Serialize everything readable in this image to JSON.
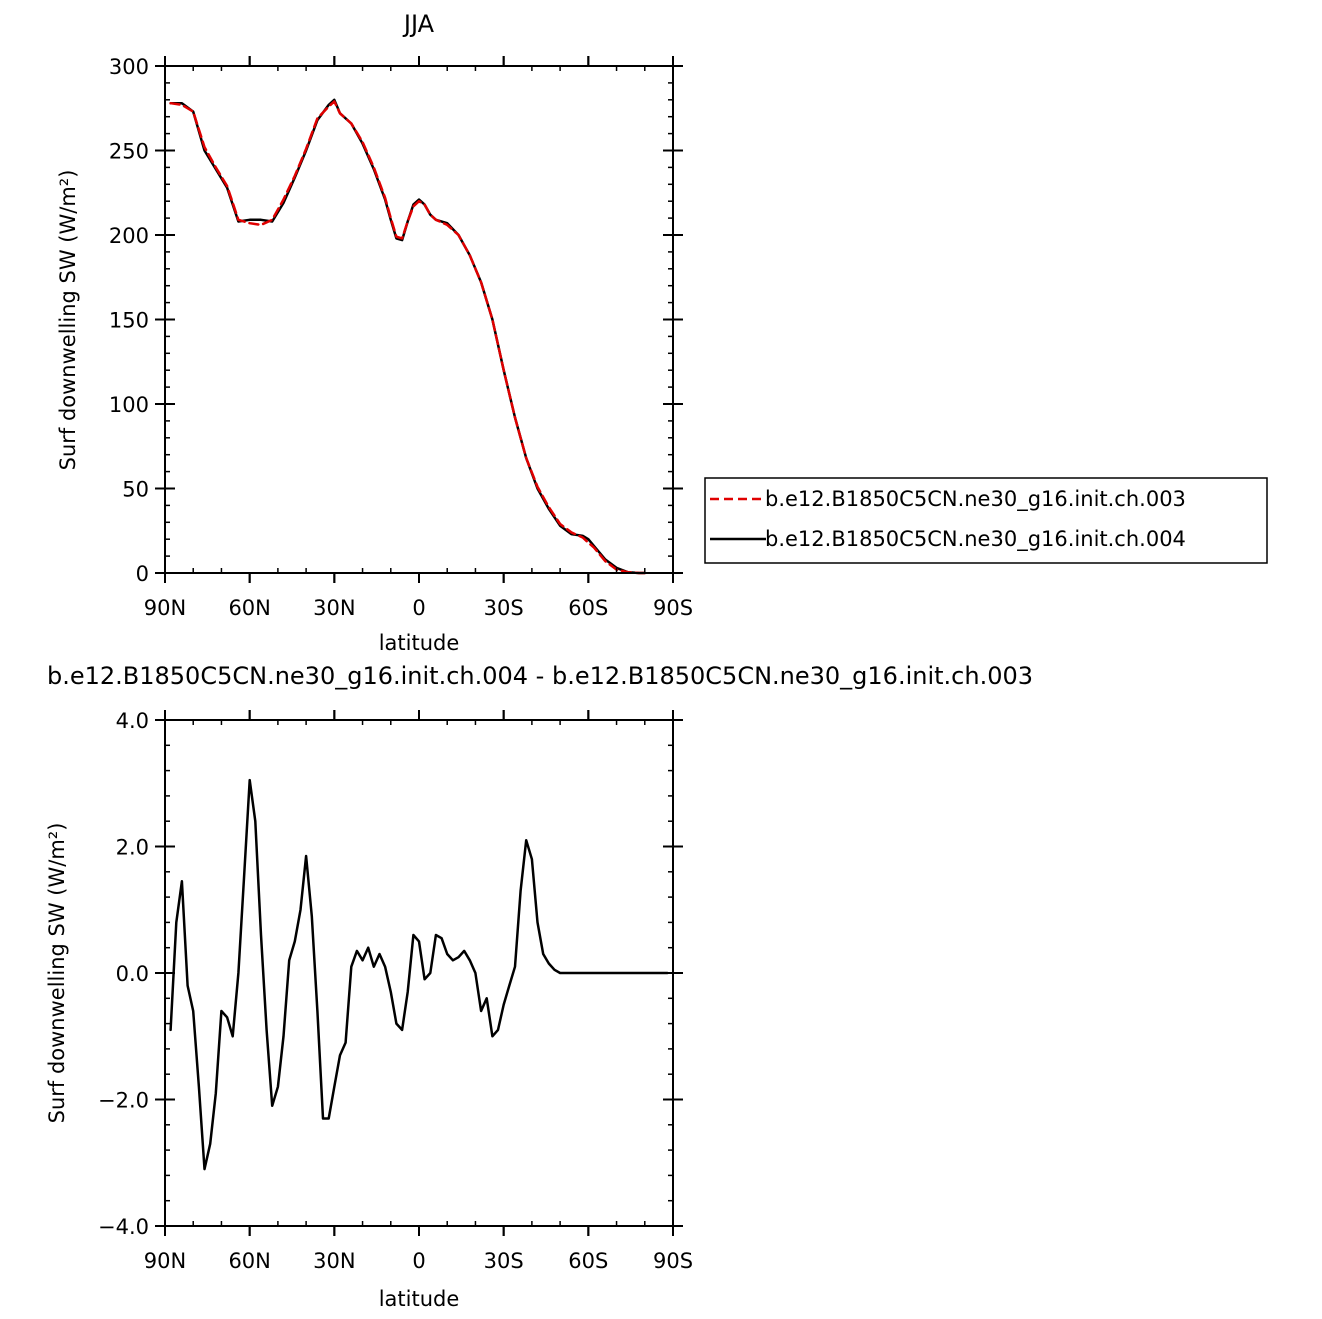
{
  "chart_data": [
    {
      "type": "line",
      "title": "JJA",
      "xlabel": "latitude",
      "ylabel": "Surf downwelling SW (W/m²)",
      "xlim": [
        90,
        -90
      ],
      "ylim": [
        0,
        300
      ],
      "xticks": [
        {
          "value": 90,
          "label": "90N"
        },
        {
          "value": 60,
          "label": "60N"
        },
        {
          "value": 30,
          "label": "30N"
        },
        {
          "value": 0,
          "label": "0"
        },
        {
          "value": -30,
          "label": "30S"
        },
        {
          "value": -60,
          "label": "60S"
        },
        {
          "value": -90,
          "label": "90S"
        }
      ],
      "yticks": [
        {
          "value": 0,
          "label": "0"
        },
        {
          "value": 50,
          "label": "50"
        },
        {
          "value": 100,
          "label": "100"
        },
        {
          "value": 150,
          "label": "150"
        },
        {
          "value": 200,
          "label": "200"
        },
        {
          "value": 250,
          "label": "250"
        },
        {
          "value": 300,
          "label": "300"
        }
      ],
      "x": [
        88,
        84,
        80,
        76,
        72,
        68,
        64,
        60,
        56,
        52,
        48,
        44,
        40,
        36,
        32,
        30,
        28,
        24,
        20,
        16,
        12,
        10,
        8,
        6,
        4,
        2,
        0,
        -2,
        -4,
        -6,
        -10,
        -14,
        -18,
        -22,
        -26,
        -30,
        -34,
        -38,
        -42,
        -46,
        -50,
        -54,
        -58,
        -60,
        -62,
        -66,
        -70,
        -74,
        -78,
        -80
      ],
      "series": [
        {
          "name": "b.e12.B1850C5CN.ne30_g16.init.ch.003",
          "color": "#e00000",
          "dash": true,
          "values": [
            278,
            277,
            273,
            252,
            240,
            229,
            209,
            207,
            206,
            209,
            221,
            235,
            251,
            269,
            276,
            279,
            272,
            266,
            255,
            240,
            222,
            210,
            199,
            198,
            208,
            217,
            220,
            218,
            212,
            209,
            206,
            200,
            188,
            172,
            150,
            120,
            92,
            68,
            51,
            39,
            29,
            24,
            21,
            18,
            15,
            7,
            2,
            0.5,
            0,
            0
          ]
        },
        {
          "name": "b.e12.B1850C5CN.ne30_g16.init.ch.004",
          "color": "#000000",
          "dash": false,
          "values": [
            278,
            278,
            273,
            250,
            239,
            228,
            208,
            209,
            209,
            208,
            219,
            234,
            250,
            268,
            277,
            280,
            272,
            266,
            254,
            239,
            221,
            209,
            198,
            197,
            208,
            218,
            221,
            218,
            212,
            209,
            207,
            200,
            188,
            172,
            150,
            120,
            92,
            68,
            50,
            38,
            28,
            23,
            22,
            20,
            16,
            8,
            3,
            0.5,
            0,
            0
          ]
        }
      ],
      "legend_position": "right"
    },
    {
      "type": "line",
      "title": "b.e12.B1850C5CN.ne30_g16.init.ch.004 - b.e12.B1850C5CN.ne30_g16.init.ch.003",
      "xlabel": "latitude",
      "ylabel": "Surf downwelling SW (W/m²)",
      "xlim": [
        90,
        -90
      ],
      "ylim": [
        -4,
        4
      ],
      "xticks": [
        {
          "value": 90,
          "label": "90N"
        },
        {
          "value": 60,
          "label": "60N"
        },
        {
          "value": 30,
          "label": "30N"
        },
        {
          "value": 0,
          "label": "0"
        },
        {
          "value": -30,
          "label": "30S"
        },
        {
          "value": -60,
          "label": "60S"
        },
        {
          "value": -90,
          "label": "90S"
        }
      ],
      "yticks": [
        {
          "value": -4,
          "label": "−4.0"
        },
        {
          "value": -2,
          "label": "−2.0"
        },
        {
          "value": 0,
          "label": "0.0"
        },
        {
          "value": 2,
          "label": "2.0"
        },
        {
          "value": 4,
          "label": "4.0"
        }
      ],
      "x": [
        88,
        86,
        84,
        82,
        80,
        78,
        76,
        74,
        72,
        70,
        68,
        66,
        64,
        62,
        60,
        58,
        56,
        54,
        52,
        50,
        48,
        46,
        44,
        42,
        40,
        38,
        36,
        34,
        32,
        30,
        28,
        26,
        24,
        22,
        20,
        18,
        16,
        14,
        12,
        10,
        8,
        6,
        4,
        2,
        0,
        -2,
        -4,
        -6,
        -8,
        -10,
        -12,
        -14,
        -16,
        -18,
        -20,
        -22,
        -24,
        -26,
        -28,
        -30,
        -32,
        -34,
        -36,
        -38,
        -40,
        -42,
        -44,
        -46,
        -48,
        -50,
        -52,
        -54,
        -56,
        -58,
        -60,
        -62,
        -64,
        -66,
        -68,
        -70,
        -72,
        -74,
        -76,
        -78,
        -80,
        -84,
        -88
      ],
      "series": [
        {
          "name": "",
          "color": "#000000",
          "dash": false,
          "values": [
            -0.9,
            0.8,
            1.45,
            -0.2,
            -0.6,
            -1.8,
            -3.1,
            -2.7,
            -1.9,
            -0.6,
            -0.7,
            -1.0,
            0.0,
            1.5,
            3.05,
            2.4,
            0.6,
            -0.9,
            -2.1,
            -1.8,
            -1.0,
            0.2,
            0.5,
            1.0,
            1.85,
            0.9,
            -0.6,
            -2.3,
            -2.3,
            -1.8,
            -1.3,
            -1.1,
            0.1,
            0.35,
            0.2,
            0.4,
            0.1,
            0.3,
            0.1,
            -0.3,
            -0.8,
            -0.9,
            -0.3,
            0.6,
            0.5,
            -0.1,
            0.0,
            0.6,
            0.55,
            0.3,
            0.2,
            0.25,
            0.35,
            0.2,
            0.0,
            -0.6,
            -0.4,
            -1.0,
            -0.9,
            -0.5,
            -0.2,
            0.1,
            1.3,
            2.1,
            1.8,
            0.8,
            0.3,
            0.15,
            0.05,
            0.0,
            0.0,
            0.0,
            0.0,
            0.0,
            0.0,
            0.0,
            0.0,
            0.0,
            0.0,
            0.0,
            0.0,
            0.0,
            0.0,
            0.0,
            0.0,
            0.0,
            0.0
          ]
        }
      ]
    }
  ]
}
